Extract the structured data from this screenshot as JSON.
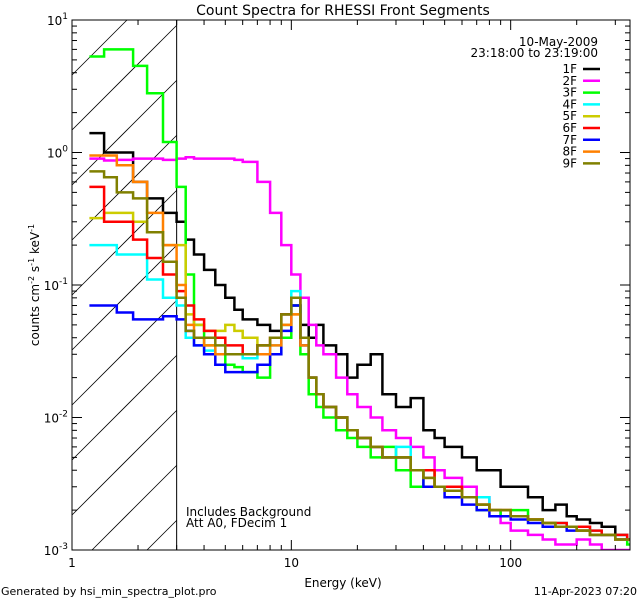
{
  "chart_data": {
    "type": "line",
    "title": "Count Spectra for RHESSI Front Segments",
    "xlabel": "Energy (keV)",
    "ylabel": {
      "base": "counts cm",
      "parts": [
        [
          "-2",
          " s"
        ],
        [
          "-1",
          " keV"
        ],
        [
          "-1",
          ""
        ]
      ]
    },
    "xscale": "log",
    "yscale": "log",
    "xlim": [
      1,
      350
    ],
    "ylim": [
      0.001,
      10
    ],
    "x_ticks": [
      {
        "v": 1,
        "label": "1"
      },
      {
        "v": 10,
        "label": "10"
      },
      {
        "v": 100,
        "label": "100"
      }
    ],
    "y_ticks": [
      {
        "v": 10,
        "base": "10",
        "exp": "1"
      },
      {
        "v": 1,
        "base": "10",
        "exp": "0"
      },
      {
        "v": 0.1,
        "base": "10",
        "exp": "-1"
      },
      {
        "v": 0.01,
        "base": "10",
        "exp": "-2"
      },
      {
        "v": 0.001,
        "base": "10",
        "exp": "-3"
      }
    ],
    "excluded_region_keV": [
      1,
      3
    ],
    "date": "10-May-2009",
    "time_range": "23:18:00 to 23:19:00",
    "annotations": [
      "Includes Background",
      "Att A0, FDecim 1"
    ],
    "legend_position": "top-right",
    "energies": [
      1.2,
      1.4,
      1.6,
      1.9,
      2.2,
      2.6,
      3.0,
      3.3,
      3.6,
      4.0,
      4.5,
      5.0,
      5.5,
      6.0,
      7.0,
      8.0,
      9.0,
      10,
      11,
      12,
      13,
      14,
      16,
      18,
      20,
      23,
      26,
      30,
      35,
      40,
      45,
      50,
      60,
      70,
      80,
      90,
      100,
      120,
      140,
      160,
      180,
      200,
      230,
      260,
      300,
      340
    ],
    "series": [
      {
        "name": "1F",
        "color": "#000000",
        "values": [
          1.4,
          1.0,
          1.0,
          0.6,
          0.45,
          0.35,
          0.3,
          0.22,
          0.17,
          0.13,
          0.1,
          0.08,
          0.065,
          0.055,
          0.05,
          0.045,
          0.06,
          0.07,
          0.05,
          0.04,
          0.05,
          0.035,
          0.03,
          0.02,
          0.025,
          0.03,
          0.015,
          0.012,
          0.014,
          0.008,
          0.007,
          0.006,
          0.005,
          0.004,
          0.004,
          0.003,
          0.003,
          0.0025,
          0.002,
          0.0022,
          0.0018,
          0.0017,
          0.0016,
          0.0015,
          0.0013,
          0.0012
        ]
      },
      {
        "name": "2F",
        "color": "#ff00ff",
        "values": [
          0.9,
          0.87,
          0.88,
          0.9,
          0.9,
          0.88,
          0.9,
          0.92,
          0.9,
          0.9,
          0.9,
          0.9,
          0.88,
          0.85,
          0.6,
          0.35,
          0.2,
          0.12,
          0.08,
          0.05,
          0.035,
          0.03,
          0.02,
          0.015,
          0.012,
          0.01,
          0.008,
          0.007,
          0.006,
          0.005,
          0.004,
          0.0035,
          0.003,
          0.0025,
          0.002,
          0.0016,
          0.0014,
          0.0013,
          0.0012,
          0.0011,
          0.0011,
          0.0012,
          0.0011,
          0.001,
          0.001,
          0.001
        ]
      },
      {
        "name": "3F",
        "color": "#00ff00",
        "values": [
          5.3,
          6.0,
          6.0,
          4.5,
          2.8,
          1.2,
          0.55,
          0.12,
          0.05,
          0.035,
          0.03,
          0.025,
          0.024,
          0.022,
          0.02,
          0.03,
          0.04,
          0.07,
          0.03,
          0.015,
          0.012,
          0.01,
          0.008,
          0.007,
          0.006,
          0.005,
          0.006,
          0.004,
          0.003,
          0.004,
          0.003,
          0.003,
          0.0025,
          0.002,
          0.002,
          0.0018,
          0.002,
          0.0017,
          0.0016,
          0.0015,
          0.0015,
          0.0014,
          0.0013,
          0.0013,
          0.0012,
          0.0011
        ]
      },
      {
        "name": "4F",
        "color": "#00ffff",
        "values": [
          0.2,
          0.2,
          0.17,
          0.17,
          0.11,
          0.08,
          0.07,
          0.04,
          0.035,
          0.032,
          0.03,
          0.03,
          0.03,
          0.028,
          0.03,
          0.035,
          0.05,
          0.09,
          0.04,
          0.02,
          0.015,
          0.012,
          0.01,
          0.008,
          0.007,
          0.006,
          0.005,
          0.006,
          0.004,
          0.004,
          0.003,
          0.003,
          0.0025,
          0.0025,
          0.002,
          0.002,
          0.0018,
          0.0017,
          0.0016,
          0.0016,
          0.0015,
          0.0015,
          0.0014,
          0.0013,
          0.0013,
          0.0012
        ]
      },
      {
        "name": "5F",
        "color": "#cccc00",
        "values": [
          0.32,
          0.35,
          0.35,
          0.3,
          0.25,
          0.2,
          0.2,
          0.06,
          0.05,
          0.045,
          0.045,
          0.05,
          0.045,
          0.04,
          0.035,
          0.04,
          0.05,
          0.06,
          0.035,
          0.02,
          0.015,
          0.012,
          0.01,
          0.008,
          0.007,
          0.006,
          0.005,
          0.005,
          0.004,
          0.004,
          0.003,
          0.003,
          0.0025,
          0.0022,
          0.002,
          0.002,
          0.0018,
          0.0017,
          0.0016,
          0.0015,
          0.0015,
          0.0014,
          0.0013,
          0.0013,
          0.0012,
          0.0012
        ]
      },
      {
        "name": "6F",
        "color": "#ff0000",
        "values": [
          0.55,
          0.3,
          0.3,
          0.22,
          0.16,
          0.12,
          0.09,
          0.07,
          0.055,
          0.045,
          0.04,
          0.035,
          0.035,
          0.03,
          0.035,
          0.04,
          0.06,
          0.08,
          0.04,
          0.02,
          0.015,
          0.012,
          0.01,
          0.008,
          0.007,
          0.006,
          0.005,
          0.005,
          0.004,
          0.004,
          0.003,
          0.003,
          0.0025,
          0.0022,
          0.002,
          0.002,
          0.0018,
          0.0017,
          0.0016,
          0.0016,
          0.0015,
          0.0015,
          0.0014,
          0.0013,
          0.0013,
          0.0012
        ]
      },
      {
        "name": "7F",
        "color": "#0000ff",
        "values": [
          0.07,
          0.07,
          0.062,
          0.055,
          0.055,
          0.058,
          0.055,
          0.045,
          0.035,
          0.03,
          0.025,
          0.022,
          0.022,
          0.022,
          0.025,
          0.03,
          0.045,
          0.07,
          0.035,
          0.02,
          0.015,
          0.012,
          0.01,
          0.008,
          0.007,
          0.006,
          0.005,
          0.005,
          0.004,
          0.003,
          0.003,
          0.0025,
          0.0022,
          0.002,
          0.0018,
          0.0018,
          0.0017,
          0.0016,
          0.0015,
          0.0015,
          0.0014,
          0.0014,
          0.0013,
          0.0013,
          0.0012,
          0.0012
        ]
      },
      {
        "name": "8F",
        "color": "#ff8000",
        "values": [
          0.95,
          0.95,
          0.8,
          0.6,
          0.35,
          0.2,
          0.1,
          0.05,
          0.04,
          0.035,
          0.03,
          0.03,
          0.03,
          0.03,
          0.03,
          0.035,
          0.05,
          0.06,
          0.035,
          0.02,
          0.015,
          0.012,
          0.01,
          0.008,
          0.007,
          0.006,
          0.005,
          0.005,
          0.004,
          0.0035,
          0.003,
          0.0028,
          0.0025,
          0.0022,
          0.002,
          0.002,
          0.0018,
          0.0017,
          0.0016,
          0.0015,
          0.0015,
          0.0014,
          0.0013,
          0.0013,
          0.0012,
          0.0012
        ]
      },
      {
        "name": "9F",
        "color": "#808000",
        "values": [
          0.72,
          0.65,
          0.5,
          0.45,
          0.25,
          0.15,
          0.08,
          0.045,
          0.04,
          0.04,
          0.035,
          0.03,
          0.03,
          0.03,
          0.035,
          0.04,
          0.06,
          0.08,
          0.04,
          0.02,
          0.015,
          0.012,
          0.01,
          0.008,
          0.007,
          0.006,
          0.005,
          0.005,
          0.004,
          0.0035,
          0.003,
          0.0028,
          0.0025,
          0.0022,
          0.002,
          0.002,
          0.0018,
          0.0017,
          0.0016,
          0.0015,
          0.0015,
          0.0014,
          0.0013,
          0.0013,
          0.0012,
          0.0012
        ]
      }
    ]
  },
  "footer": {
    "generated_by": "Generated by hsi_min_spectra_plot.pro",
    "timestamp": "11-Apr-2023 07:20"
  }
}
